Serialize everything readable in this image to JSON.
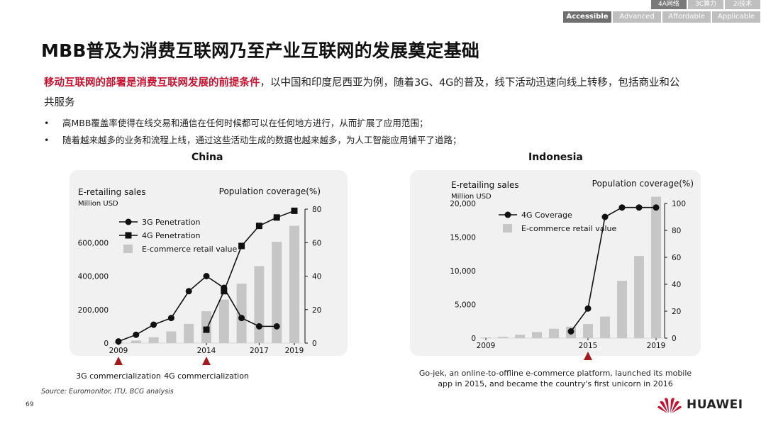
{
  "nav": {
    "top": [
      {
        "label": "4A网络",
        "active": true
      },
      {
        "label": "3C算力",
        "active": false
      },
      {
        "label": "2i技术",
        "active": false
      }
    ],
    "bottom": [
      {
        "label": "Accessible",
        "active": true
      },
      {
        "label": "Advanced",
        "active": false
      },
      {
        "label": "Affordable",
        "active": false
      },
      {
        "label": "Applicable",
        "active": false
      }
    ]
  },
  "title": "MBB普及为消费互联网乃至产业互联网的发展奠定基础",
  "intro": {
    "highlight": "移动互联网的部署是消费互联网发展的前提条件",
    "rest": "，以中国和印度尼西亚为例，随着3G、4G的普及，线下活动迅速向线上转移，包括商业和公共服务"
  },
  "bullets": [
    "高MBB覆盖率使得在线交易和通信在任何时候都可以在任何地方进行，从而扩展了应用范围；",
    "随着越来越多的业务和流程上线，通过这些活动生成的数据也越来越多，为人工智能应用铺平了道路；"
  ],
  "colors": {
    "bar": "#c6c6c6",
    "line": "#111111",
    "marker_red": "#a31a1a",
    "highlight": "#c8102e",
    "panel": "#f1f1f1"
  },
  "chart_data": [
    {
      "type": "bar+line",
      "title": "China",
      "left_axis_title": "E-retailing sales",
      "left_axis_unit": "Million USD",
      "right_axis_title": "Population coverage(%)",
      "x": [
        2009,
        2010,
        2011,
        2012,
        2013,
        2014,
        2015,
        2016,
        2017,
        2018,
        2019
      ],
      "x_tick_labels": [
        "2009",
        "2014",
        "2017",
        "2019"
      ],
      "left_ylim": [
        0,
        800000
      ],
      "left_ticks": [
        0,
        200000,
        400000,
        600000
      ],
      "left_tick_labels": [
        "0",
        "200,000",
        "400,000",
        "600,000"
      ],
      "right_ylim": [
        0,
        80
      ],
      "right_ticks": [
        0,
        20,
        40,
        60,
        80
      ],
      "bars": {
        "name": "E-commerce retail value",
        "values": [
          5000,
          15000,
          35000,
          70000,
          115000,
          190000,
          260000,
          355000,
          460000,
          605000,
          700000
        ]
      },
      "series": [
        {
          "name": "3G Penetration",
          "marker": "circle",
          "x": [
            2009,
            2010,
            2011,
            2012,
            2013,
            2014,
            2015,
            2016,
            2017,
            2018
          ],
          "values": [
            1,
            5,
            11,
            15,
            31,
            40,
            33,
            15,
            10,
            10
          ]
        },
        {
          "name": "4G Penetration",
          "marker": "square",
          "x": [
            2014,
            2015,
            2016,
            2017,
            2018,
            2019
          ],
          "values": [
            8,
            31,
            58,
            70,
            75,
            79
          ]
        }
      ],
      "annotations": [
        {
          "x": 2009,
          "label": "3G commercialization"
        },
        {
          "x": 2014,
          "label": "4G commercialization"
        }
      ]
    },
    {
      "type": "bar+line",
      "title": "Indonesia",
      "left_axis_title": "E-retailing sales",
      "left_axis_unit": "Million USD",
      "right_axis_title": "Population coverage(%)",
      "x": [
        2009,
        2010,
        2011,
        2012,
        2013,
        2014,
        2015,
        2016,
        2017,
        2018,
        2019
      ],
      "x_tick_labels": [
        "2009",
        "2015",
        "2019"
      ],
      "left_ylim": [
        0,
        20000
      ],
      "left_ticks": [
        0,
        5000,
        10000,
        15000,
        20000
      ],
      "left_tick_labels": [
        "0",
        "5,000",
        "10,000",
        "15,000",
        "20,000"
      ],
      "right_ylim": [
        0,
        100
      ],
      "right_ticks": [
        0,
        20,
        40,
        60,
        80,
        100
      ],
      "bars": {
        "name": "E-commerce retail value",
        "values": [
          100,
          200,
          500,
          900,
          1400,
          1700,
          2100,
          3200,
          8500,
          12200,
          21000
        ]
      },
      "series": [
        {
          "name": "4G Coverage",
          "marker": "circle",
          "x": [
            2014,
            2015,
            2016,
            2017,
            2018,
            2019
          ],
          "values": [
            5,
            22,
            90,
            97,
            97,
            97
          ]
        }
      ],
      "annotations": [
        {
          "x": 2015,
          "label": ""
        }
      ],
      "note": "Go-jek, an online-to-offline e-commerce platform, launched its mobile app in 2015, and became the country's first unicorn in 2016"
    }
  ],
  "source": "Source: Euromonitor, ITU, BCG analysis",
  "page_number": "69",
  "logo_text": "HUAWEI"
}
